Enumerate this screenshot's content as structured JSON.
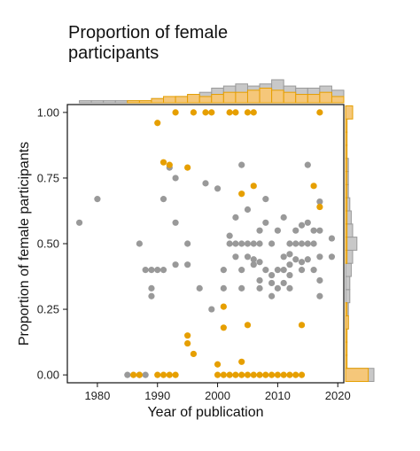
{
  "chart_data": {
    "type": "scatter",
    "title_lines": [
      "Proportion of female",
      "participants"
    ],
    "xlabel": "Year of publication",
    "ylabel": "Proportion of female participants",
    "xlim": [
      1975,
      2021
    ],
    "ylim": [
      -0.03,
      1.03
    ],
    "xticks": [
      "1980",
      "1990",
      "2000",
      "2010",
      "2020"
    ],
    "yticks": [
      "0.00",
      "0.25",
      "0.50",
      "0.75",
      "1.00"
    ],
    "grid": false,
    "marginal_histograms": [
      "top",
      "right"
    ],
    "colors": {
      "gray": "#999999",
      "orange": "#e69f00",
      "gray_fill": "#c8c8c8",
      "orange_fill": "#f5c77a"
    },
    "series": [
      {
        "color": "gray",
        "points": [
          [
            1977,
            0.58
          ],
          [
            1980,
            0.67
          ],
          [
            1985,
            0.0
          ],
          [
            1987,
            0.0
          ],
          [
            1987,
            0.5
          ],
          [
            1988,
            0.4
          ],
          [
            1988,
            0.0
          ],
          [
            1989,
            0.4
          ],
          [
            1989,
            0.33
          ],
          [
            1989,
            0.3
          ],
          [
            1990,
            0.4
          ],
          [
            1991,
            0.67
          ],
          [
            1991,
            0.4
          ],
          [
            1992,
            0.79
          ],
          [
            1993,
            0.75
          ],
          [
            1993,
            0.58
          ],
          [
            1993,
            0.42
          ],
          [
            1995,
            0.5
          ],
          [
            1995,
            0.42
          ],
          [
            1997,
            0.33
          ],
          [
            1998,
            0.73
          ],
          [
            1999,
            0.25
          ],
          [
            2000,
            0.71
          ],
          [
            2001,
            0.4
          ],
          [
            2001,
            0.33
          ],
          [
            2002,
            0.5
          ],
          [
            2002,
            0.53
          ],
          [
            2003,
            0.5
          ],
          [
            2003,
            0.45
          ],
          [
            2003,
            0.6
          ],
          [
            2004,
            0.5
          ],
          [
            2004,
            0.4
          ],
          [
            2004,
            0.33
          ],
          [
            2004,
            0.8
          ],
          [
            2005,
            0.63
          ],
          [
            2005,
            0.5
          ],
          [
            2005,
            0.45
          ],
          [
            2006,
            0.5
          ],
          [
            2006,
            0.42
          ],
          [
            2006,
            0.44
          ],
          [
            2007,
            0.5
          ],
          [
            2007,
            0.55
          ],
          [
            2007,
            0.43
          ],
          [
            2007,
            0.36
          ],
          [
            2007,
            0.33
          ],
          [
            2008,
            0.67
          ],
          [
            2008,
            0.4
          ],
          [
            2008,
            0.58
          ],
          [
            2009,
            0.5
          ],
          [
            2009,
            0.38
          ],
          [
            2009,
            0.35
          ],
          [
            2009,
            0.3
          ],
          [
            2010,
            0.55
          ],
          [
            2010,
            0.4
          ],
          [
            2010,
            0.33
          ],
          [
            2011,
            0.6
          ],
          [
            2011,
            0.45
          ],
          [
            2011,
            0.4
          ],
          [
            2011,
            0.35
          ],
          [
            2012,
            0.5
          ],
          [
            2012,
            0.46
          ],
          [
            2012,
            0.42
          ],
          [
            2012,
            0.38
          ],
          [
            2012,
            0.33
          ],
          [
            2013,
            0.5
          ],
          [
            2013,
            0.55
          ],
          [
            2013,
            0.44
          ],
          [
            2014,
            0.57
          ],
          [
            2014,
            0.5
          ],
          [
            2014,
            0.43
          ],
          [
            2014,
            0.4
          ],
          [
            2015,
            0.8
          ],
          [
            2015,
            0.58
          ],
          [
            2015,
            0.5
          ],
          [
            2015,
            0.44
          ],
          [
            2016,
            0.55
          ],
          [
            2016,
            0.5
          ],
          [
            2016,
            0.4
          ],
          [
            2017,
            0.66
          ],
          [
            2017,
            0.55
          ],
          [
            2017,
            0.45
          ],
          [
            2017,
            0.36
          ],
          [
            2017,
            0.3
          ],
          [
            2019,
            0.52
          ],
          [
            2019,
            0.45
          ]
        ]
      },
      {
        "color": "orange",
        "points": [
          [
            1986,
            0.0
          ],
          [
            1987,
            0.0
          ],
          [
            1990,
            0.96
          ],
          [
            1990,
            0.0
          ],
          [
            1991,
            0.81
          ],
          [
            1991,
            0.0
          ],
          [
            1992,
            0.8
          ],
          [
            1992,
            0.0
          ],
          [
            1993,
            1.0
          ],
          [
            1993,
            0.0
          ],
          [
            1995,
            0.79
          ],
          [
            1995,
            0.15
          ],
          [
            1995,
            0.12
          ],
          [
            1996,
            1.0
          ],
          [
            1996,
            0.08
          ],
          [
            1998,
            1.0
          ],
          [
            1999,
            1.0
          ],
          [
            2000,
            0.04
          ],
          [
            2001,
            0.26
          ],
          [
            2001,
            0.18
          ],
          [
            2002,
            1.0
          ],
          [
            2003,
            1.0
          ],
          [
            2004,
            0.69
          ],
          [
            2004,
            0.05
          ],
          [
            2005,
            1.0
          ],
          [
            2005,
            0.19
          ],
          [
            2006,
            1.0
          ],
          [
            2006,
            0.72
          ],
          [
            2016,
            0.72
          ],
          [
            2014,
            0.19
          ],
          [
            2017,
            1.0
          ],
          [
            2017,
            0.64
          ],
          [
            2000,
            0.0
          ],
          [
            2001,
            0.0
          ],
          [
            2002,
            0.0
          ],
          [
            2003,
            0.0
          ],
          [
            2004,
            0.0
          ],
          [
            2005,
            0.0
          ],
          [
            2006,
            0.0
          ],
          [
            2007,
            0.0
          ],
          [
            2008,
            0.0
          ],
          [
            2009,
            0.0
          ],
          [
            2010,
            0.0
          ],
          [
            2011,
            0.0
          ],
          [
            2012,
            0.0
          ],
          [
            2013,
            0.0
          ],
          [
            2014,
            0.0
          ]
        ]
      }
    ],
    "top_histogram": {
      "bin_start": 1977,
      "bin_width": 2,
      "gray_counts": [
        1,
        1,
        1,
        1,
        1,
        1,
        2,
        2,
        3,
        4,
        5,
        7,
        8,
        9,
        8,
        9,
        11,
        8,
        7,
        7,
        8,
        6
      ],
      "orange_counts": [
        0,
        0,
        0,
        0,
        1,
        1,
        2,
        3,
        3,
        4,
        3,
        4,
        5,
        5,
        6,
        7,
        6,
        5,
        4,
        4,
        5,
        3
      ]
    },
    "right_histogram": {
      "bin_centers": [
        0.0,
        0.05,
        0.1,
        0.15,
        0.2,
        0.25,
        0.3,
        0.35,
        0.4,
        0.45,
        0.5,
        0.55,
        0.6,
        0.65,
        0.7,
        0.75,
        0.8,
        0.85,
        0.9,
        0.95,
        1.0
      ],
      "gray_counts": [
        20,
        1,
        1,
        1,
        2,
        2,
        3,
        3,
        4,
        5,
        8,
        5,
        4,
        3,
        2,
        2,
        2,
        1,
        1,
        1,
        2
      ],
      "orange_counts": [
        16,
        1,
        1,
        1,
        2,
        1,
        0,
        0,
        0,
        1,
        1,
        1,
        1,
        1,
        1,
        1,
        1,
        1,
        1,
        1,
        5
      ]
    }
  }
}
